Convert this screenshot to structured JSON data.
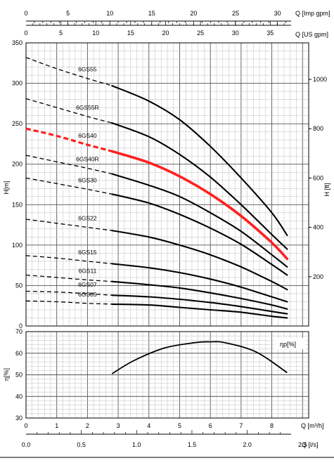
{
  "chart_data": [
    {
      "type": "line",
      "id": "head",
      "xlabel": "Q [m³/h]",
      "ylabel_left": "H[m]",
      "ylabel_right": "H [ft]",
      "xlim": [
        0,
        9.2
      ],
      "ylim": [
        0,
        350
      ],
      "y_ticks": [
        0,
        50,
        100,
        150,
        200,
        250,
        300,
        350
      ],
      "y2_ticks": [
        200,
        400,
        600,
        800,
        1000
      ],
      "top_axis_imp": {
        "label": "Q [Imp gpm]",
        "ticks": [
          0,
          5,
          10,
          15,
          20,
          25,
          30
        ]
      },
      "top_axis_us": {
        "label": "Q [US gpm]",
        "ticks": [
          0,
          5,
          10,
          15,
          20,
          25,
          30,
          35
        ]
      },
      "grid": true,
      "operating_range_start": 2.8,
      "series": [
        {
          "name": "6GS55",
          "highlight": false,
          "x": [
            0,
            1,
            2,
            2.8,
            4,
            5,
            6,
            7,
            8,
            8.5
          ],
          "y": [
            332,
            318,
            306,
            297,
            278,
            255,
            222,
            183,
            140,
            112
          ]
        },
        {
          "name": "6GS55R",
          "highlight": false,
          "x": [
            0,
            1,
            2,
            2.8,
            4,
            5,
            6,
            7,
            8,
            8.5
          ],
          "y": [
            281,
            270,
            259,
            251,
            234,
            212,
            184,
            150,
            113,
            95
          ]
        },
        {
          "name": "6GS40",
          "highlight": true,
          "x": [
            0,
            1,
            2,
            2.8,
            4,
            5,
            6,
            7,
            8,
            8.5
          ],
          "y": [
            244,
            235,
            224,
            216,
            202,
            185,
            163,
            136,
            103,
            83
          ]
        },
        {
          "name": "6GS40R",
          "highlight": false,
          "x": [
            0,
            1,
            2,
            2.8,
            4,
            5,
            6,
            7,
            8,
            8.5
          ],
          "y": [
            211,
            203,
            195,
            188,
            174,
            160,
            140,
            117,
            88,
            73
          ]
        },
        {
          "name": "6GS30",
          "highlight": false,
          "x": [
            0,
            1,
            2,
            2.8,
            4,
            5,
            6,
            7,
            8,
            8.5
          ],
          "y": [
            183,
            176,
            169,
            163,
            152,
            138,
            121,
            101,
            76,
            63
          ]
        },
        {
          "name": "6GS22",
          "highlight": false,
          "x": [
            0,
            1,
            2,
            2.8,
            4,
            5,
            6,
            7,
            8,
            8.5
          ],
          "y": [
            132,
            127,
            122,
            118,
            110,
            100,
            88,
            73,
            55,
            45
          ]
        },
        {
          "name": "6GS15",
          "highlight": false,
          "x": [
            0,
            1,
            2,
            2.8,
            4,
            5,
            6,
            7,
            8,
            8.5
          ],
          "y": [
            87,
            84,
            80,
            77,
            72,
            66,
            58,
            48,
            36,
            30
          ]
        },
        {
          "name": "6GS11",
          "highlight": false,
          "x": [
            0,
            1,
            2,
            2.8,
            4,
            5,
            6,
            7,
            8,
            8.5
          ],
          "y": [
            63,
            60,
            57,
            55,
            51,
            47,
            41,
            34,
            26,
            21
          ]
        },
        {
          "name": "6GS07",
          "highlight": false,
          "x": [
            0,
            1,
            2,
            2.8,
            4,
            5,
            6,
            7,
            8,
            8.5
          ],
          "y": [
            43,
            42,
            40,
            38,
            36,
            33,
            29,
            24,
            18,
            15
          ]
        },
        {
          "name": "6GS05",
          "highlight": false,
          "x": [
            0,
            1,
            2,
            2.8,
            4,
            5,
            6,
            7,
            8,
            8.5
          ],
          "y": [
            31,
            30,
            28,
            27,
            26,
            23,
            20,
            17,
            12,
            10
          ]
        }
      ]
    },
    {
      "type": "line",
      "id": "efficiency",
      "ylabel": "η[%]",
      "legend_label": "ηp[%]",
      "xlim": [
        0,
        9.2
      ],
      "ylim": [
        30,
        70
      ],
      "y_ticks": [
        30,
        40,
        50,
        60,
        70
      ],
      "grid": true,
      "series": [
        {
          "name": "ηp[%]",
          "x": [
            2.8,
            3.5,
            4.5,
            5.5,
            6,
            6.5,
            7.5,
            8.5
          ],
          "y": [
            50.5,
            56.5,
            62.4,
            64.9,
            65.3,
            64.8,
            60.5,
            51
          ]
        }
      ]
    }
  ],
  "bottom_axis_m3h": {
    "label": "Q [m³/h]",
    "ticks": [
      0,
      1,
      2,
      3,
      4,
      5,
      6,
      7,
      8
    ]
  },
  "bottom_axis_ls": {
    "label": "Q [l/s]",
    "ticks": [
      "0.0",
      "0.5",
      "1.0",
      "1.5",
      "2.0",
      "2.5"
    ]
  }
}
